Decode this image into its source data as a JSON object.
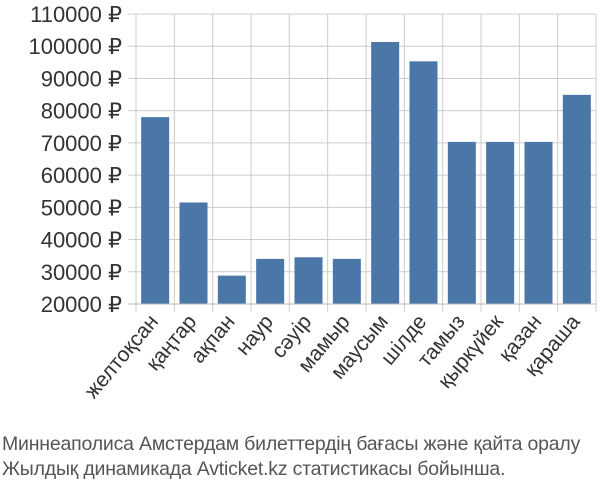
{
  "chart_data": {
    "type": "bar",
    "categories": [
      "желтоқсан",
      "қаңтар",
      "ақпан",
      "наур",
      "сәуір",
      "мамыр",
      "маусым",
      "шілде",
      "тамыз",
      "қыркүйек",
      "қазан",
      "қараша"
    ],
    "values": [
      78000,
      51500,
      28800,
      34000,
      34500,
      34000,
      101300,
      95300,
      70300,
      70300,
      70300,
      84900
    ],
    "title": "",
    "xlabel": "",
    "ylabel": "",
    "ylim": [
      20000,
      110000
    ],
    "yticks": [
      20000,
      30000,
      40000,
      50000,
      60000,
      70000,
      80000,
      90000,
      100000,
      110000
    ],
    "ytick_suffix": " ₽",
    "grid": true,
    "bar_color": "#4a76a8",
    "grid_color": "#cccccc"
  },
  "caption": {
    "line1": "Миннеаполиса Амстердам билеттердің бағасы және қайта оралу",
    "line2": "Жылдық динамикада Avticket.kz статистикасы бойынша."
  }
}
